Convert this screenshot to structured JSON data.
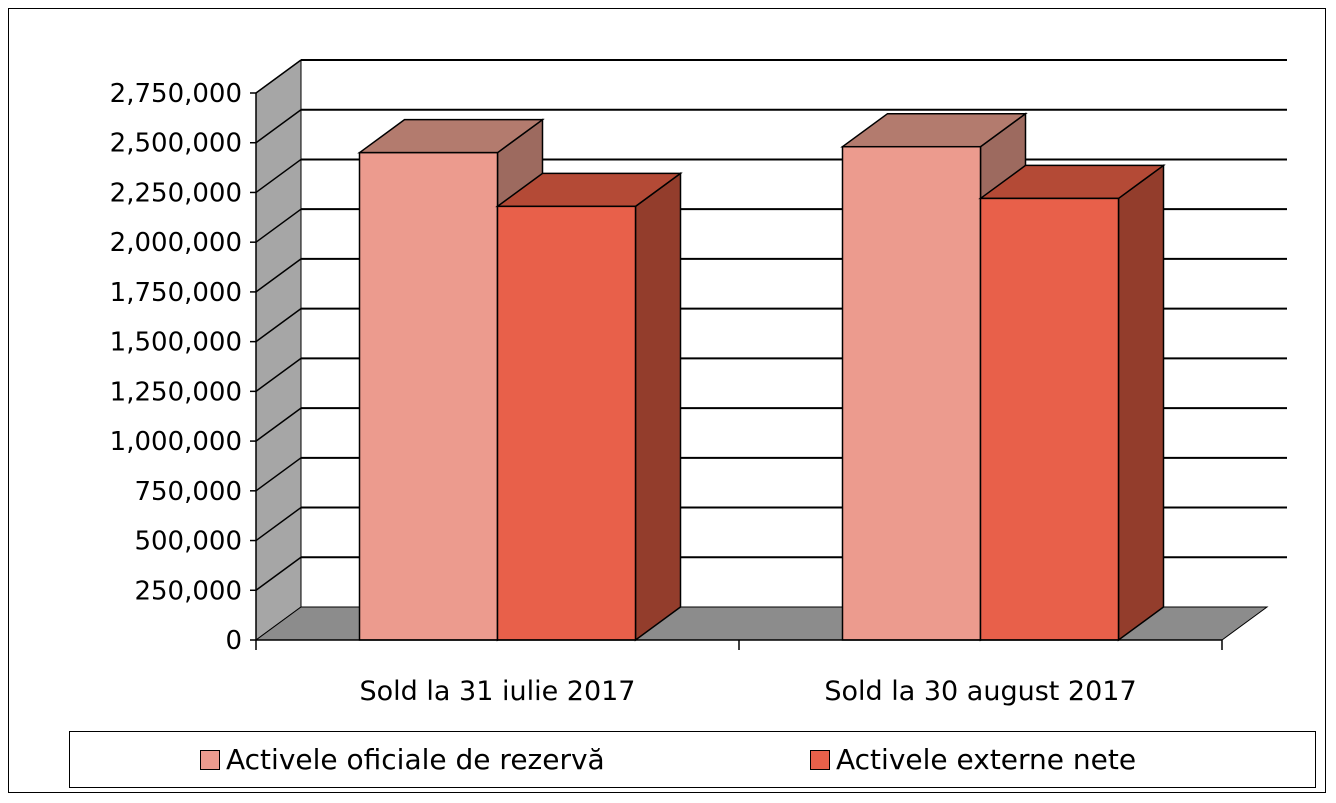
{
  "chart_data": {
    "type": "bar",
    "title": "",
    "xlabel": "",
    "ylabel": "",
    "categories": [
      "Sold la 31 iulie 2017",
      "Sold la 30 august 2017"
    ],
    "series": [
      {
        "name": "Activele oficiale de rezervă",
        "values": [
          2450000,
          2480000
        ]
      },
      {
        "name": "Activele externe nete",
        "values": [
          2180000,
          2220000
        ]
      }
    ],
    "ylim": [
      0,
      2750000
    ],
    "yticks": [
      "0",
      "250,000",
      "500,000",
      "750,000",
      "1,000,000",
      "1,250,000",
      "1,500,000",
      "1,750,000",
      "2,000,000",
      "2,250,000",
      "2,500,000",
      "2,750,000"
    ],
    "grid": true,
    "legend_position": "bottom"
  },
  "colors": {
    "series1_front": "#ec9b8e",
    "series1_top": "#b37b6e",
    "series1_side": "#9d6a5f",
    "series2_front": "#e8604a",
    "series2_top": "#b44a36",
    "series2_side": "#933d2c",
    "wall": "#a6a6a6",
    "floor": "#8c8c8c"
  }
}
